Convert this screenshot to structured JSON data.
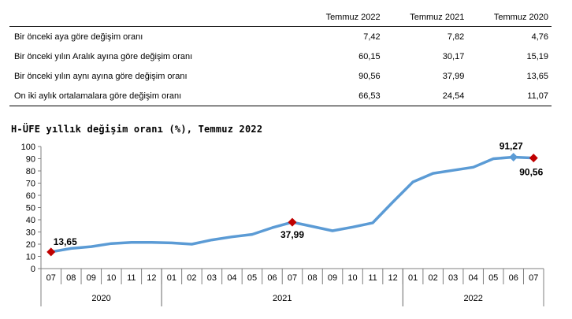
{
  "table": {
    "headers": [
      "",
      "Temmuz 2022",
      "Temmuz 2021",
      "Temmuz 2020"
    ],
    "rows": [
      {
        "label": "Bir önceki aya göre değişim oranı",
        "values": [
          "7,42",
          "7,82",
          "4,76"
        ]
      },
      {
        "label": "Bir önceki yılın Aralık ayına göre değişim oranı",
        "values": [
          "60,15",
          "30,17",
          "15,19"
        ]
      },
      {
        "label": "Bir önceki yılın aynı ayına göre değişim oranı",
        "values": [
          "90,56",
          "37,99",
          "13,65"
        ]
      },
      {
        "label": "On iki aylık ortalamalara göre değişim oranı",
        "values": [
          "66,53",
          "24,54",
          "11,07"
        ]
      }
    ]
  },
  "chart_title": "H-ÜFE yıllık değişim oranı (%), Temmuz 2022",
  "chart_data": {
    "type": "line",
    "title": "H-ÜFE yıllık değişim oranı (%), Temmuz 2022",
    "xlabel": "",
    "ylabel": "",
    "ylim": [
      0,
      100
    ],
    "yticks": [
      0,
      10,
      20,
      30,
      40,
      50,
      60,
      70,
      80,
      90,
      100
    ],
    "categories": [
      "07",
      "08",
      "09",
      "10",
      "11",
      "12",
      "01",
      "02",
      "03",
      "04",
      "05",
      "06",
      "07",
      "08",
      "09",
      "10",
      "11",
      "12",
      "01",
      "02",
      "03",
      "04",
      "05",
      "06",
      "07"
    ],
    "year_groups": [
      {
        "label": "2020",
        "start": 0,
        "end": 5
      },
      {
        "label": "2021",
        "start": 6,
        "end": 17
      },
      {
        "label": "2022",
        "start": 18,
        "end": 24
      }
    ],
    "series": [
      {
        "values": [
          13.65,
          16.5,
          18.0,
          20.5,
          21.5,
          21.5,
          21.0,
          20.0,
          23.5,
          26.0,
          28.0,
          33.5,
          37.99,
          34.5,
          31.0,
          34.0,
          37.5,
          54.5,
          71.0,
          78.0,
          80.5,
          83.0,
          90.0,
          91.27,
          90.56
        ]
      }
    ],
    "highlight_points": [
      {
        "index": 0,
        "label": "13,65",
        "marker": "diamond-red"
      },
      {
        "index": 12,
        "label": "37,99",
        "marker": "diamond-red"
      },
      {
        "index": 23,
        "label": "91,27",
        "marker": "diamond-blue"
      },
      {
        "index": 24,
        "label": "90,56",
        "marker": "diamond-red"
      }
    ],
    "colors": {
      "line": "#5b9bd5",
      "marker_red": "#c00000",
      "marker_blue": "#5b9bd5",
      "axis": "#7f7f7f",
      "text": "#000000"
    },
    "grid": false
  }
}
